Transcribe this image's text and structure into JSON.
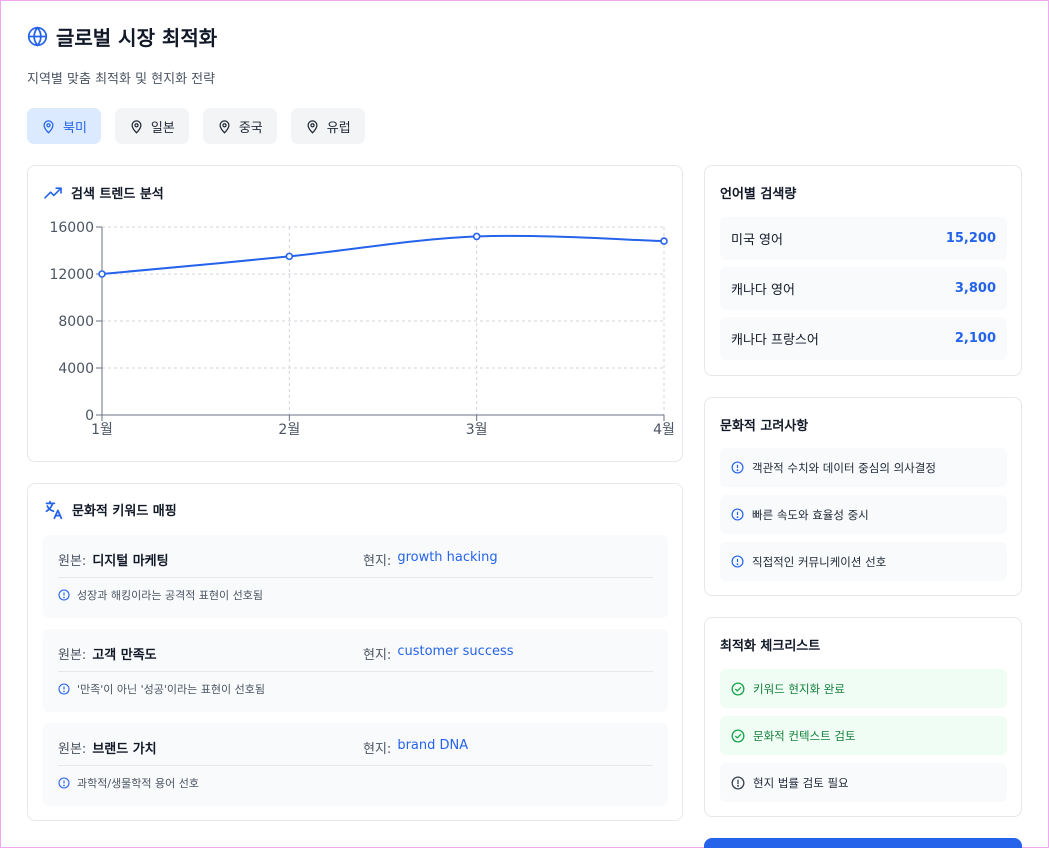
{
  "header": {
    "title": "글로벌 시장 최적화",
    "subtitle": "지역별 맞춤 최적화 및 현지화 전략"
  },
  "regions": [
    {
      "label": "북미",
      "active": true
    },
    {
      "label": "일본",
      "active": false
    },
    {
      "label": "중국",
      "active": false
    },
    {
      "label": "유럽",
      "active": false
    }
  ],
  "trend": {
    "title": "검색 트렌드 분석"
  },
  "chart_data": {
    "type": "line",
    "categories": [
      "1월",
      "2월",
      "3월",
      "4월"
    ],
    "values": [
      12000,
      13500,
      15200,
      14800
    ],
    "ylim": [
      0,
      16000
    ],
    "yticks": [
      0,
      4000,
      8000,
      12000,
      16000
    ],
    "grid": true,
    "color": "#2563eb"
  },
  "keywords": {
    "title": "문화적 키워드 매핑",
    "original_label": "원본:",
    "local_label": "현지:",
    "items": [
      {
        "original": "디지털 마케팅",
        "local": "growth hacking",
        "note": "성장과 해킹이라는 공격적 표현이 선호됨"
      },
      {
        "original": "고객 만족도",
        "local": "customer success",
        "note": "'만족'이 아닌 '성공'이라는 표현이 선호됨"
      },
      {
        "original": "브랜드 가치",
        "local": "brand DNA",
        "note": "과학적/생물학적 용어 선호"
      }
    ]
  },
  "languages": {
    "title": "언어별 검색량",
    "items": [
      {
        "name": "미국 영어",
        "count": "15,200"
      },
      {
        "name": "캐나다 영어",
        "count": "3,800"
      },
      {
        "name": "캐나다 프랑스어",
        "count": "2,100"
      }
    ]
  },
  "culture": {
    "title": "문화적 고려사항",
    "items": [
      "객관적 수치와 데이터 중심의 의사결정",
      "빠른 속도와 효율성 중시",
      "직접적인 커뮤니케이션 선호"
    ]
  },
  "checklist": {
    "title": "최적화 체크리스트",
    "items": [
      {
        "label": "키워드 현지화 완료",
        "done": true
      },
      {
        "label": "문화적 컨텍스트 검토",
        "done": true
      },
      {
        "label": "현지 법률 검토 필요",
        "done": false
      }
    ]
  },
  "colors": {
    "accent": "#2563eb",
    "success": "#15803d"
  }
}
